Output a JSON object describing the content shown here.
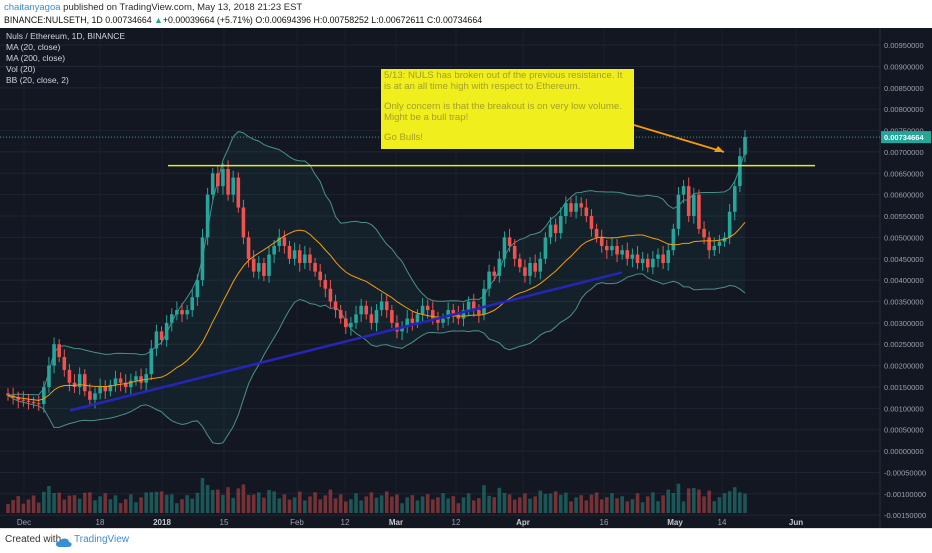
{
  "header": {
    "author": "chaitanyagoa",
    "published_text": "published on TradingView.com, May 13, 2018 21:23 EST",
    "ticker": "BINANCE:NULSETH, 1D",
    "last": "0.00734664",
    "change_arrow": "▲",
    "change": "+0.00039664 (+5.71%)",
    "ohlc": "O:0.00694396 H:0.00758252 L:0.00672611 C:0.00734664"
  },
  "legend": {
    "title": "Nuls / Ethereum, 1D, BINANCE",
    "studies": [
      "MA (20, close)",
      "MA (200, close)",
      "Vol (20)",
      "BB (20, close, 2)"
    ]
  },
  "annotation": {
    "lines": [
      "5/13: NULS has broken out of the previous resistance. It is at an all time high with respect to Ethereum.",
      "Only concern is that the breakout is on very low volume. Might be a bull trap!",
      "Go Bulls!"
    ]
  },
  "footer": {
    "created_with": "Created with",
    "brand": "TradingView"
  },
  "colors": {
    "background": "#131722",
    "up": "#26a69a",
    "down": "#ef5350",
    "ma20": "#f39c12",
    "bollinger": "#4c8f8a",
    "resistance": "#e8e81a",
    "trendline": "#2525b8",
    "note_bg": "#f0ee1c"
  },
  "chart_data": {
    "type": "candlestick",
    "title": "Nuls / Ethereum, 1D, BINANCE",
    "last_price": 0.00734664,
    "y_axis": {
      "ylim": [
        -0.0018,
        0.0099
      ],
      "ticks": [
        "0.00950000",
        "0.00900000",
        "0.00850000",
        "0.00800000",
        "0.00750000",
        "0.00700000",
        "0.00650000",
        "0.00600000",
        "0.00550000",
        "0.00500000",
        "0.00450000",
        "0.00400000",
        "0.00350000",
        "0.00300000",
        "0.00250000",
        "0.00200000",
        "0.00150000",
        "0.00100000",
        "0.00050000",
        "0.00000000",
        "-0.00050000",
        "-0.00100000",
        "-0.00150000"
      ]
    },
    "x_axis": {
      "labels": [
        "Dec",
        "18",
        "2018",
        "15",
        "Feb",
        "12",
        "Mar",
        "12",
        "Apr",
        "16",
        "May",
        "14",
        "Jun"
      ],
      "bold_labels": [
        "2018",
        "Mar",
        "Apr",
        "May",
        "Jun"
      ]
    },
    "resistance_level": 0.00668,
    "trendline": [
      {
        "date": "2017-12-11",
        "price": 0.00095
      },
      {
        "date": "2018-04-16",
        "price": 0.00418
      }
    ],
    "candles": [
      [
        0.00135,
        0.0013
      ],
      [
        0.0013,
        0.00125
      ],
      [
        0.00125,
        0.0012
      ],
      [
        0.0012,
        0.00118
      ],
      [
        0.00118,
        0.00115
      ],
      [
        0.00115,
        0.00112
      ],
      [
        0.00112,
        0.0011
      ],
      [
        0.0011,
        0.0015
      ],
      [
        0.0015,
        0.002
      ],
      [
        0.002,
        0.0025
      ],
      [
        0.0025,
        0.0022
      ],
      [
        0.0022,
        0.0019
      ],
      [
        0.0019,
        0.0016
      ],
      [
        0.0016,
        0.0015
      ],
      [
        0.0015,
        0.0018
      ],
      [
        0.0018,
        0.0014
      ],
      [
        0.0014,
        0.0012
      ],
      [
        0.0012,
        0.00135
      ],
      [
        0.00135,
        0.0015
      ],
      [
        0.0015,
        0.0014
      ],
      [
        0.0014,
        0.00155
      ],
      [
        0.00155,
        0.0017
      ],
      [
        0.0017,
        0.0016
      ],
      [
        0.0016,
        0.0015
      ],
      [
        0.0015,
        0.00165
      ],
      [
        0.00165,
        0.00175
      ],
      [
        0.00175,
        0.0016
      ],
      [
        0.0016,
        0.0018
      ],
      [
        0.0018,
        0.0024
      ],
      [
        0.0024,
        0.0028
      ],
      [
        0.0028,
        0.0026
      ],
      [
        0.0026,
        0.003
      ],
      [
        0.003,
        0.0032
      ],
      [
        0.0032,
        0.0033
      ],
      [
        0.0033,
        0.0032
      ],
      [
        0.0032,
        0.0033
      ],
      [
        0.0033,
        0.0036
      ],
      [
        0.0036,
        0.004
      ],
      [
        0.004,
        0.005
      ],
      [
        0.005,
        0.006
      ],
      [
        0.006,
        0.0065
      ],
      [
        0.0065,
        0.0062
      ],
      [
        0.0062,
        0.0066
      ],
      [
        0.0066,
        0.006
      ],
      [
        0.006,
        0.0064
      ],
      [
        0.0064,
        0.0057
      ],
      [
        0.0057,
        0.005
      ],
      [
        0.005,
        0.0045
      ],
      [
        0.0045,
        0.0042
      ],
      [
        0.0042,
        0.0044
      ],
      [
        0.0044,
        0.0041
      ],
      [
        0.0041,
        0.0046
      ],
      [
        0.0046,
        0.0048
      ],
      [
        0.0048,
        0.005
      ],
      [
        0.005,
        0.0048
      ],
      [
        0.0048,
        0.0045
      ],
      [
        0.0045,
        0.0047
      ],
      [
        0.0047,
        0.0044
      ],
      [
        0.0044,
        0.0046
      ],
      [
        0.0046,
        0.0044
      ],
      [
        0.0044,
        0.0042
      ],
      [
        0.0042,
        0.004
      ],
      [
        0.004,
        0.0038
      ],
      [
        0.0038,
        0.0035
      ],
      [
        0.0035,
        0.0033
      ],
      [
        0.0033,
        0.0031
      ],
      [
        0.0031,
        0.0029
      ],
      [
        0.0029,
        0.003
      ],
      [
        0.003,
        0.0032
      ],
      [
        0.0032,
        0.0034
      ],
      [
        0.0034,
        0.0032
      ],
      [
        0.0032,
        0.003
      ],
      [
        0.003,
        0.0033
      ],
      [
        0.0033,
        0.0035
      ],
      [
        0.0035,
        0.0033
      ],
      [
        0.0033,
        0.003
      ],
      [
        0.003,
        0.0028
      ],
      [
        0.0028,
        0.0029
      ],
      [
        0.0029,
        0.0031
      ],
      [
        0.0031,
        0.003
      ],
      [
        0.003,
        0.0032
      ],
      [
        0.0032,
        0.0034
      ],
      [
        0.0034,
        0.0033
      ],
      [
        0.0033,
        0.0031
      ],
      [
        0.0031,
        0.003
      ],
      [
        0.003,
        0.0031
      ],
      [
        0.0031,
        0.0033
      ],
      [
        0.0033,
        0.0032
      ],
      [
        0.0032,
        0.0031
      ],
      [
        0.0031,
        0.0033
      ],
      [
        0.0033,
        0.0035
      ],
      [
        0.0035,
        0.0033
      ],
      [
        0.0033,
        0.0032
      ],
      [
        0.0032,
        0.0038
      ],
      [
        0.0038,
        0.0042
      ],
      [
        0.0042,
        0.0041
      ],
      [
        0.0041,
        0.0045
      ],
      [
        0.0045,
        0.005
      ],
      [
        0.005,
        0.0048
      ],
      [
        0.0048,
        0.0045
      ],
      [
        0.0045,
        0.0043
      ],
      [
        0.0043,
        0.0041
      ],
      [
        0.0041,
        0.0044
      ],
      [
        0.0044,
        0.0042
      ],
      [
        0.0042,
        0.0045
      ],
      [
        0.0045,
        0.005
      ],
      [
        0.005,
        0.0053
      ],
      [
        0.0053,
        0.0051
      ],
      [
        0.0051,
        0.0055
      ],
      [
        0.0055,
        0.0058
      ],
      [
        0.0058,
        0.0056
      ],
      [
        0.0056,
        0.0058
      ],
      [
        0.0058,
        0.0057
      ],
      [
        0.0057,
        0.0055
      ],
      [
        0.0055,
        0.0052
      ],
      [
        0.0052,
        0.005
      ],
      [
        0.005,
        0.0048
      ],
      [
        0.0048,
        0.0047
      ],
      [
        0.0047,
        0.0048
      ],
      [
        0.0048,
        0.0046
      ],
      [
        0.0046,
        0.0047
      ],
      [
        0.0047,
        0.0045
      ],
      [
        0.0045,
        0.0046
      ],
      [
        0.0046,
        0.0044
      ],
      [
        0.0044,
        0.0045
      ],
      [
        0.0045,
        0.0043
      ],
      [
        0.0043,
        0.0045
      ],
      [
        0.0045,
        0.0046
      ],
      [
        0.0046,
        0.0044
      ],
      [
        0.0044,
        0.0047
      ],
      [
        0.0047,
        0.0052
      ],
      [
        0.0052,
        0.006
      ],
      [
        0.006,
        0.0062
      ],
      [
        0.0062,
        0.0055
      ],
      [
        0.0055,
        0.006
      ],
      [
        0.006,
        0.0052
      ],
      [
        0.0052,
        0.005
      ],
      [
        0.005,
        0.0047
      ],
      [
        0.0047,
        0.0048
      ],
      [
        0.0048,
        0.0049
      ],
      [
        0.0049,
        0.005
      ],
      [
        0.005,
        0.0056
      ],
      [
        0.0056,
        0.0062
      ],
      [
        0.0062,
        0.0069
      ],
      [
        0.00694,
        0.00735
      ]
    ]
  }
}
